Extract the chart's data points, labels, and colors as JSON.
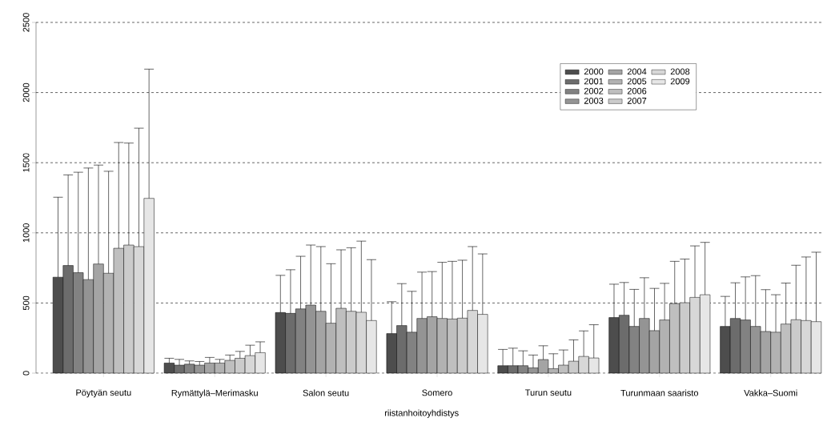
{
  "chart_data": {
    "type": "bar",
    "xlabel": "riistanhoitoyhdistys",
    "categories": [
      "Pöytyän seutu",
      "Rymättylä–Merimasku",
      "Salon seutu",
      "Somero",
      "Turun seutu",
      "Turunmaan saaristo",
      "Vakka–Suomi"
    ],
    "ylim": [
      0,
      2500
    ],
    "yticks": [
      0,
      500,
      1000,
      1500,
      2000,
      2500
    ],
    "grid": "y",
    "legend": "top right",
    "series": [
      {
        "name": "2000",
        "color": "#4d4d4d",
        "values": [
          684,
          72,
          432,
          282,
          53,
          396,
          333
        ],
        "errors": [
          [
            684,
            1254
          ],
          [
            72,
            106
          ],
          [
            432,
            697
          ],
          [
            282,
            509
          ],
          [
            53,
            169
          ],
          [
            396,
            634
          ],
          [
            333,
            547
          ]
        ]
      },
      {
        "name": "2001",
        "color": "#6c6c6c",
        "values": [
          767,
          57,
          426,
          339,
          53,
          413,
          390
        ],
        "errors": [
          [
            767,
            1413
          ],
          [
            57,
            98
          ],
          [
            426,
            737
          ],
          [
            339,
            638
          ],
          [
            53,
            178
          ],
          [
            413,
            646
          ],
          [
            390,
            644
          ]
        ]
      },
      {
        "name": "2002",
        "color": "#828282",
        "values": [
          716,
          64,
          458,
          292,
          53,
          333,
          379
        ],
        "errors": [
          [
            716,
            1432
          ],
          [
            64,
            87
          ],
          [
            458,
            833
          ],
          [
            292,
            583
          ],
          [
            53,
            159
          ],
          [
            333,
            597
          ],
          [
            379,
            686
          ]
        ]
      },
      {
        "name": "2003",
        "color": "#949494",
        "values": [
          667,
          57,
          485,
          390,
          38,
          390,
          333
        ],
        "errors": [
          [
            667,
            1462
          ],
          [
            57,
            83
          ],
          [
            485,
            913
          ],
          [
            390,
            720
          ],
          [
            38,
            129
          ],
          [
            390,
            680
          ],
          [
            333,
            695
          ]
        ]
      },
      {
        "name": "2004",
        "color": "#a4a4a4",
        "values": [
          778,
          72,
          441,
          402,
          97,
          303,
          297
        ],
        "errors": [
          [
            778,
            1483
          ],
          [
            72,
            112
          ],
          [
            441,
            902
          ],
          [
            402,
            724
          ],
          [
            97,
            195
          ],
          [
            303,
            604
          ],
          [
            297,
            595
          ]
        ]
      },
      {
        "name": "2005",
        "color": "#b2b2b2",
        "values": [
          712,
          72,
          356,
          390,
          32,
          379,
          292
        ],
        "errors": [
          [
            712,
            1439
          ],
          [
            72,
            98
          ],
          [
            356,
            780
          ],
          [
            390,
            790
          ],
          [
            32,
            138
          ],
          [
            379,
            640
          ],
          [
            292,
            559
          ]
        ]
      },
      {
        "name": "2006",
        "color": "#bfbfbf",
        "values": [
          890,
          91,
          462,
          386,
          57,
          496,
          350
        ],
        "errors": [
          [
            890,
            1644
          ],
          [
            91,
            129
          ],
          [
            462,
            879
          ],
          [
            386,
            797
          ],
          [
            57,
            165
          ],
          [
            496,
            797
          ],
          [
            350,
            642
          ]
        ]
      },
      {
        "name": "2007",
        "color": "#cbcbcb",
        "values": [
          913,
          106,
          441,
          392,
          85,
          502,
          381
        ],
        "errors": [
          [
            913,
            1640
          ],
          [
            106,
            155
          ],
          [
            441,
            894
          ],
          [
            392,
            805
          ],
          [
            85,
            237
          ],
          [
            502,
            813
          ],
          [
            381,
            769
          ]
        ]
      },
      {
        "name": "2008",
        "color": "#d7d7d7",
        "values": [
          902,
          125,
          434,
          447,
          119,
          540,
          375
        ],
        "errors": [
          [
            902,
            1746
          ],
          [
            125,
            199
          ],
          [
            434,
            941
          ],
          [
            447,
            902
          ],
          [
            119,
            301
          ],
          [
            540,
            907
          ],
          [
            375,
            828
          ]
        ]
      },
      {
        "name": "2009",
        "color": "#e6e6e6",
        "values": [
          1246,
          146,
          375,
          419,
          108,
          559,
          367
        ],
        "errors": [
          [
            1246,
            2167
          ],
          [
            146,
            223
          ],
          [
            375,
            809
          ],
          [
            419,
            850
          ],
          [
            108,
            345
          ],
          [
            559,
            932
          ],
          [
            367,
            862
          ]
        ]
      }
    ]
  }
}
